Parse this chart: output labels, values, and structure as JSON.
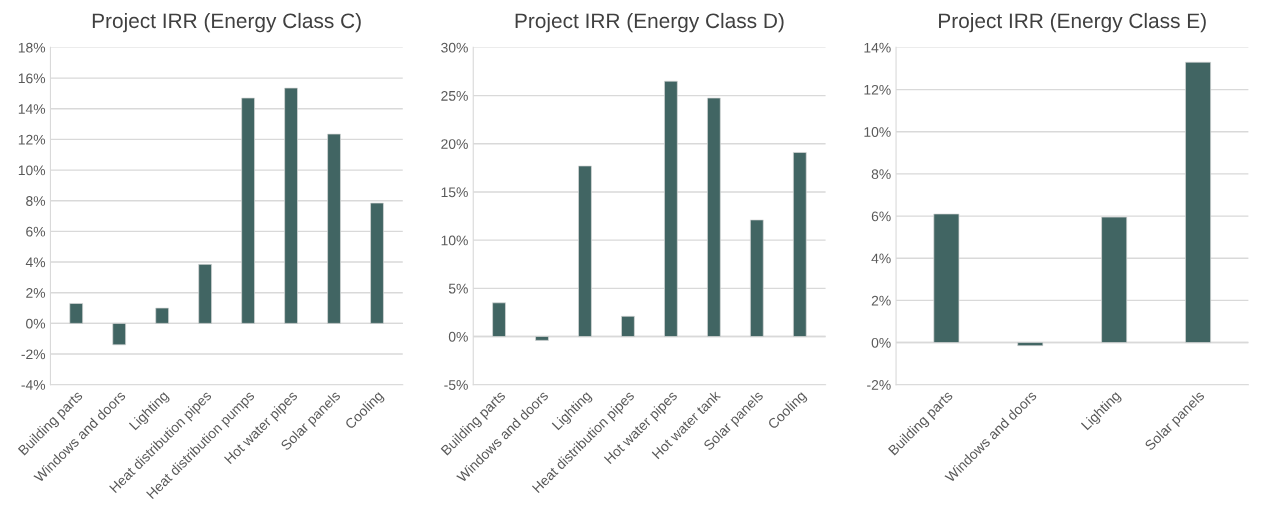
{
  "chart_data": [
    {
      "type": "bar",
      "title": "Project IRR (Energy Class C)",
      "categories": [
        "Building parts",
        "Windows and doors",
        "Lighting",
        "Heat distribution pipes",
        "Heat distribution pumps",
        "Hot water pipes",
        "Solar panels",
        "Cooling"
      ],
      "values": [
        1.3,
        -1.4,
        1.0,
        3.85,
        14.7,
        15.35,
        12.35,
        7.85
      ],
      "color": "#416563",
      "ylim": [
        -4,
        18
      ],
      "yticks": [
        {
          "value": -4,
          "label": "-4%"
        },
        {
          "value": -2,
          "label": "-2%"
        },
        {
          "value": 0,
          "label": "0%"
        },
        {
          "value": 2,
          "label": "2%"
        },
        {
          "value": 4,
          "label": "4%"
        },
        {
          "value": 6,
          "label": "6%"
        },
        {
          "value": 8,
          "label": "8%"
        },
        {
          "value": 10,
          "label": "10%"
        },
        {
          "value": 12,
          "label": "12%"
        },
        {
          "value": 14,
          "label": "14%"
        },
        {
          "value": 16,
          "label": "16%"
        },
        {
          "value": 18,
          "label": "18%"
        }
      ],
      "grid": "y"
    },
    {
      "type": "bar",
      "title": "Project IRR (Energy Class D)",
      "categories": [
        "Building parts",
        "Windows and doors",
        "Lighting",
        "Heat distribution pipes",
        "Hot water pipes",
        "Hot water tank",
        "Solar panels",
        "Cooling"
      ],
      "values": [
        3.5,
        -0.4,
        17.7,
        2.1,
        26.5,
        24.75,
        12.1,
        19.1
      ],
      "color": "#416563",
      "ylim": [
        -5,
        30
      ],
      "yticks": [
        {
          "value": -5,
          "label": "-5%"
        },
        {
          "value": 0,
          "label": "0%"
        },
        {
          "value": 5,
          "label": "5%"
        },
        {
          "value": 10,
          "label": "10%"
        },
        {
          "value": 15,
          "label": "15%"
        },
        {
          "value": 20,
          "label": "20%"
        },
        {
          "value": 25,
          "label": "25%"
        },
        {
          "value": 30,
          "label": "30%"
        }
      ],
      "grid": "y"
    },
    {
      "type": "bar",
      "title": "Project IRR (Energy Class E)",
      "categories": [
        "Building parts",
        "Windows and doors",
        "Lighting",
        "Solar panels"
      ],
      "values": [
        6.1,
        -0.15,
        5.95,
        13.3
      ],
      "color": "#416563",
      "ylim": [
        -2,
        14
      ],
      "yticks": [
        {
          "value": -2,
          "label": "-2%"
        },
        {
          "value": 0,
          "label": "0%"
        },
        {
          "value": 2,
          "label": "2%"
        },
        {
          "value": 4,
          "label": "4%"
        },
        {
          "value": 6,
          "label": "6%"
        },
        {
          "value": 8,
          "label": "8%"
        },
        {
          "value": 10,
          "label": "10%"
        },
        {
          "value": 12,
          "label": "12%"
        },
        {
          "value": 14,
          "label": "14%"
        }
      ],
      "grid": "y"
    }
  ]
}
